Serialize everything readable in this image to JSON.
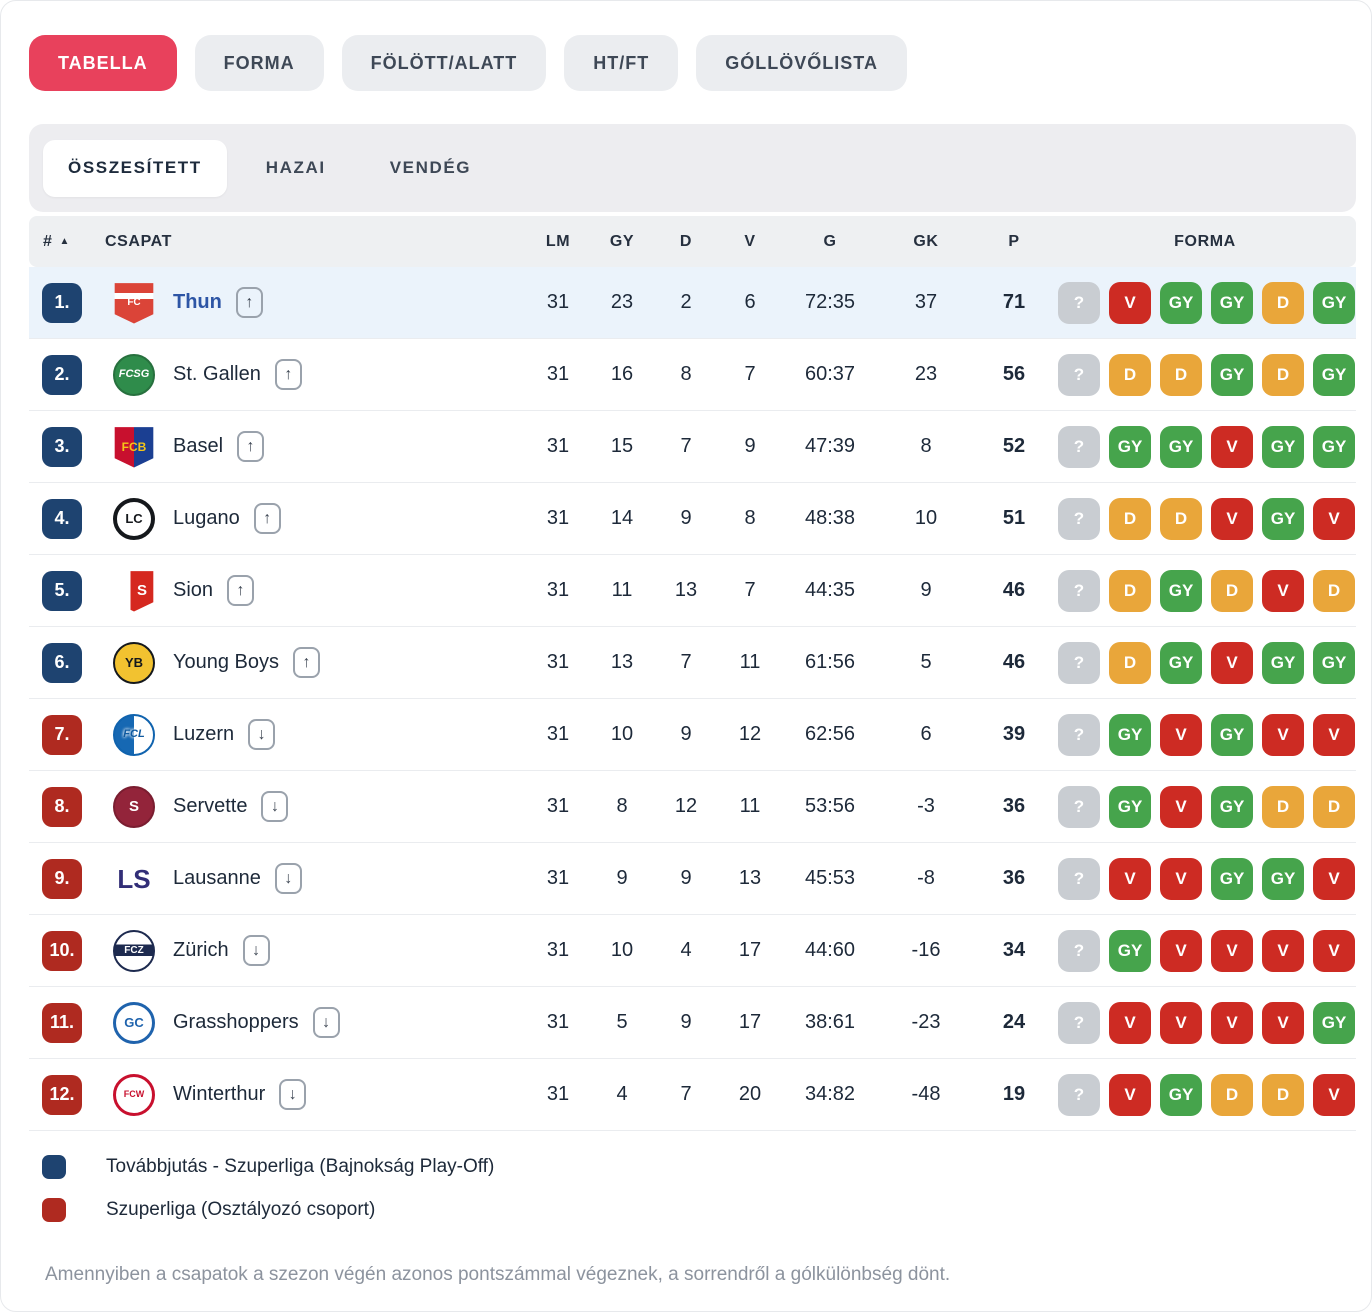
{
  "tabs": [
    {
      "label": "TABELLA",
      "active": true
    },
    {
      "label": "FORMA",
      "active": false
    },
    {
      "label": "FÖLÖTT/ALATT",
      "active": false
    },
    {
      "label": "HT/FT",
      "active": false
    },
    {
      "label": "GÓLLÖVŐLISTA",
      "active": false
    }
  ],
  "subtabs": [
    {
      "label": "ÖSSZESÍTETT",
      "active": true
    },
    {
      "label": "HAZAI",
      "active": false
    },
    {
      "label": "VENDÉG",
      "active": false
    }
  ],
  "icons": {
    "up": "↑",
    "down": "↓",
    "sort_asc": "▲"
  },
  "colors": {
    "active_tab": "#E8415C",
    "zone_playoff": "#1E4370",
    "zone_relegation": "#AF2A20",
    "form_win": "#46A44C",
    "form_draw": "#E9A63A",
    "form_loss": "#CD2B23",
    "form_unknown": "#C9CDD2",
    "highlight_row": "#EBF3FB"
  },
  "table": {
    "headers": {
      "rank": "#",
      "team": "CSAPAT",
      "lm": "LM",
      "gy": "GY",
      "d": "D",
      "v": "V",
      "g": "G",
      "gk": "GK",
      "p": "P",
      "forma": "FORMA"
    },
    "rows": [
      {
        "rank": "1.",
        "team": "Thun",
        "logo": "thun",
        "logo_shape": "shield",
        "logo_text": "FC",
        "zone": "playoff",
        "movement": "up",
        "highlighted": true,
        "lm": "31",
        "gy": "23",
        "d": "2",
        "v": "6",
        "g": "72:35",
        "gk": "37",
        "p": "71",
        "form": [
          "?",
          "V",
          "GY",
          "GY",
          "D",
          "GY"
        ]
      },
      {
        "rank": "2.",
        "team": "St. Gallen",
        "logo": "stgallen",
        "logo_shape": "circle",
        "logo_text": "FCSG",
        "zone": "playoff",
        "movement": "up",
        "highlighted": false,
        "lm": "31",
        "gy": "16",
        "d": "8",
        "v": "7",
        "g": "60:37",
        "gk": "23",
        "p": "56",
        "form": [
          "?",
          "D",
          "D",
          "GY",
          "D",
          "GY"
        ]
      },
      {
        "rank": "3.",
        "team": "Basel",
        "logo": "basel",
        "logo_shape": "shield",
        "logo_text": "FCB",
        "zone": "playoff",
        "movement": "up",
        "highlighted": false,
        "lm": "31",
        "gy": "15",
        "d": "7",
        "v": "9",
        "g": "47:39",
        "gk": "8",
        "p": "52",
        "form": [
          "?",
          "GY",
          "GY",
          "V",
          "GY",
          "GY"
        ]
      },
      {
        "rank": "4.",
        "team": "Lugano",
        "logo": "lugano",
        "logo_shape": "circle",
        "logo_text": "LC",
        "zone": "playoff",
        "movement": "up",
        "highlighted": false,
        "lm": "31",
        "gy": "14",
        "d": "9",
        "v": "8",
        "g": "48:38",
        "gk": "10",
        "p": "51",
        "form": [
          "?",
          "D",
          "D",
          "V",
          "GY",
          "V"
        ]
      },
      {
        "rank": "5.",
        "team": "Sion",
        "logo": "sion",
        "logo_shape": "shield",
        "logo_text": "S",
        "zone": "playoff",
        "movement": "up",
        "highlighted": false,
        "lm": "31",
        "gy": "11",
        "d": "13",
        "v": "7",
        "g": "44:35",
        "gk": "9",
        "p": "46",
        "form": [
          "?",
          "D",
          "GY",
          "D",
          "V",
          "D"
        ]
      },
      {
        "rank": "6.",
        "team": "Young Boys",
        "logo": "youngboys",
        "logo_shape": "circle",
        "logo_text": "YB",
        "zone": "playoff",
        "movement": "up",
        "highlighted": false,
        "lm": "31",
        "gy": "13",
        "d": "7",
        "v": "11",
        "g": "61:56",
        "gk": "5",
        "p": "46",
        "form": [
          "?",
          "D",
          "GY",
          "V",
          "GY",
          "GY"
        ]
      },
      {
        "rank": "7.",
        "team": "Luzern",
        "logo": "luzern",
        "logo_shape": "circle",
        "logo_text": "FCL",
        "zone": "relegation",
        "movement": "down",
        "highlighted": false,
        "lm": "31",
        "gy": "10",
        "d": "9",
        "v": "12",
        "g": "62:56",
        "gk": "6",
        "p": "39",
        "form": [
          "?",
          "GY",
          "V",
          "GY",
          "V",
          "V"
        ]
      },
      {
        "rank": "8.",
        "team": "Servette",
        "logo": "servette",
        "logo_shape": "circle",
        "logo_text": "S",
        "zone": "relegation",
        "movement": "down",
        "highlighted": false,
        "lm": "31",
        "gy": "8",
        "d": "12",
        "v": "11",
        "g": "53:56",
        "gk": "-3",
        "p": "36",
        "form": [
          "?",
          "GY",
          "V",
          "GY",
          "D",
          "D"
        ]
      },
      {
        "rank": "9.",
        "team": "Lausanne",
        "logo": "lausanne",
        "logo_shape": "circle",
        "logo_text": "LS",
        "zone": "relegation",
        "movement": "down",
        "highlighted": false,
        "lm": "31",
        "gy": "9",
        "d": "9",
        "v": "13",
        "g": "45:53",
        "gk": "-8",
        "p": "36",
        "form": [
          "?",
          "V",
          "V",
          "GY",
          "GY",
          "V"
        ]
      },
      {
        "rank": "10.",
        "team": "Zürich",
        "logo": "zurich",
        "logo_shape": "circle",
        "logo_text": "FCZ",
        "zone": "relegation",
        "movement": "down",
        "highlighted": false,
        "lm": "31",
        "gy": "10",
        "d": "4",
        "v": "17",
        "g": "44:60",
        "gk": "-16",
        "p": "34",
        "form": [
          "?",
          "GY",
          "V",
          "V",
          "V",
          "V"
        ]
      },
      {
        "rank": "11.",
        "team": "Grasshoppers",
        "logo": "grasshoppers",
        "logo_shape": "circle",
        "logo_text": "GC",
        "zone": "relegation",
        "movement": "down",
        "highlighted": false,
        "lm": "31",
        "gy": "5",
        "d": "9",
        "v": "17",
        "g": "38:61",
        "gk": "-23",
        "p": "24",
        "form": [
          "?",
          "V",
          "V",
          "V",
          "V",
          "GY"
        ]
      },
      {
        "rank": "12.",
        "team": "Winterthur",
        "logo": "winterthur",
        "logo_shape": "circle",
        "logo_text": "FCW",
        "zone": "relegation",
        "movement": "down",
        "highlighted": false,
        "lm": "31",
        "gy": "4",
        "d": "7",
        "v": "20",
        "g": "34:82",
        "gk": "-48",
        "p": "19",
        "form": [
          "?",
          "V",
          "GY",
          "D",
          "D",
          "V"
        ]
      }
    ]
  },
  "legend": [
    {
      "zone": "playoff",
      "label": "Továbbjutás - Szuperliga (Bajnokság Play-Off)"
    },
    {
      "zone": "relegation",
      "label": "Szuperliga (Osztályozó csoport)"
    }
  ],
  "footer": "Amennyiben a csapatok a szezon végén azonos pontszámmal végeznek, a sorrendről a gólkülönbség dönt."
}
